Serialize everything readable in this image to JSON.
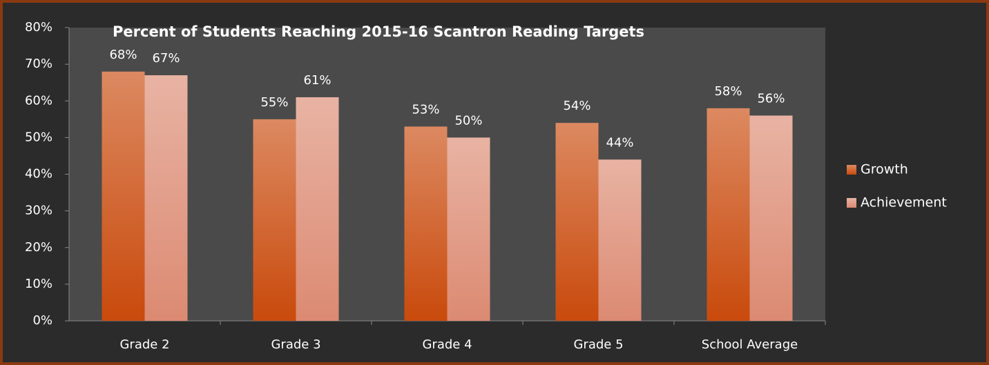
{
  "chart_data": {
    "type": "bar",
    "title": "Percent of Students Reaching 2015-16 Scantron Reading Targets",
    "categories": [
      "Grade 2",
      "Grade 3",
      "Grade 4",
      "Grade 5",
      "School Average"
    ],
    "series": [
      {
        "name": "Growth",
        "color": "#c94a0c",
        "values": [
          68,
          55,
          53,
          54,
          58
        ],
        "value_labels": [
          "68%",
          "55%",
          "53%",
          "54%",
          "58%"
        ]
      },
      {
        "name": "Achievement",
        "color": "#dc8a72",
        "values": [
          67,
          61,
          50,
          44,
          56
        ],
        "value_labels": [
          "67%",
          "61%",
          "50%",
          "44%",
          "56%"
        ]
      }
    ],
    "ylim": [
      0,
      80
    ],
    "yticks": [
      {
        "value": 0,
        "label": "0%"
      },
      {
        "value": 10,
        "label": "10%"
      },
      {
        "value": 20,
        "label": "20%"
      },
      {
        "value": 30,
        "label": "30%"
      },
      {
        "value": 40,
        "label": "40%"
      },
      {
        "value": 50,
        "label": "50%"
      },
      {
        "value": 60,
        "label": "60%"
      },
      {
        "value": 70,
        "label": "70%"
      },
      {
        "value": 80,
        "label": "80%"
      }
    ],
    "legend": "right"
  }
}
